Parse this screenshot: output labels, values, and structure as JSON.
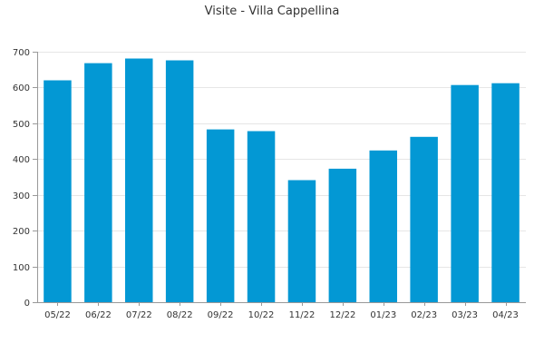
{
  "chart_data": {
    "type": "bar",
    "title": "Visite - Villa Cappellina",
    "xlabel": "",
    "ylabel": "",
    "categories": [
      "05/22",
      "06/22",
      "07/22",
      "08/22",
      "09/22",
      "10/22",
      "11/22",
      "12/22",
      "01/23",
      "02/23",
      "03/23",
      "04/23"
    ],
    "values": [
      620,
      668,
      681,
      676,
      483,
      478,
      341,
      373,
      424,
      462,
      607,
      612
    ],
    "ylim": [
      0,
      700
    ],
    "yticks": [
      0,
      100,
      200,
      300,
      400,
      500,
      600,
      700
    ],
    "grid": true,
    "legend": "none",
    "colors": {
      "bar": "#0398d4",
      "grid": "#e6e6e6",
      "axis": "#999999",
      "text": "#333333"
    }
  }
}
